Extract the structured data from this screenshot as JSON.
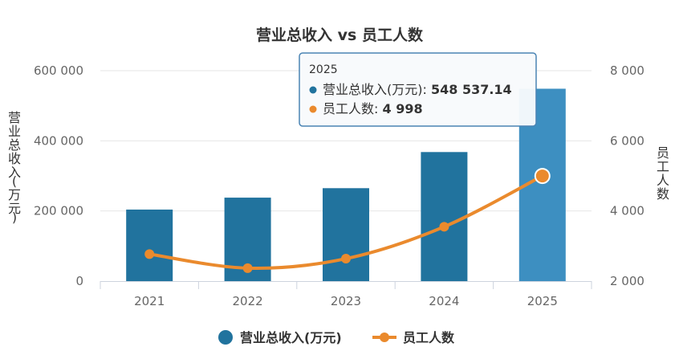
{
  "chart_data": {
    "type": "bar",
    "title": "营业总收入 vs 员工人数",
    "categories": [
      "2021",
      "2022",
      "2023",
      "2024",
      "2025"
    ],
    "series": [
      {
        "name": "营业总收入(万元)",
        "type": "bar",
        "axis": "left",
        "color": "#21739e",
        "highlight_color": "#3d8fc1",
        "values": [
          204000,
          238000,
          265000,
          368000,
          548537.14
        ]
      },
      {
        "name": "员工人数",
        "type": "line",
        "axis": "right",
        "color": "#ea8a2d",
        "values": [
          2770,
          2370,
          2640,
          3550,
          4998
        ]
      }
    ],
    "left_axis": {
      "title": "营业总收入(万元)",
      "range": [
        0,
        600000
      ],
      "ticks": [
        {
          "value": 0,
          "label": "0"
        },
        {
          "value": 200000,
          "label": "200 000"
        },
        {
          "value": 400000,
          "label": "400 000"
        },
        {
          "value": 600000,
          "label": "600 000"
        }
      ]
    },
    "right_axis": {
      "title": "员工人数",
      "range": [
        2000,
        8000
      ],
      "ticks": [
        {
          "value": 2000,
          "label": "2 000"
        },
        {
          "value": 4000,
          "label": "4 000"
        },
        {
          "value": 6000,
          "label": "6 000"
        },
        {
          "value": 8000,
          "label": "8 000"
        }
      ]
    },
    "grid": true,
    "legend": {
      "position": "bottom"
    },
    "tooltip": {
      "category": "2025",
      "rows": [
        {
          "label": "营业总收入(万元): ",
          "value": "548 537.14",
          "color": "#21739e"
        },
        {
          "label": "员工人数: ",
          "value": "4 998",
          "color": "#ea8a2d"
        }
      ]
    }
  }
}
